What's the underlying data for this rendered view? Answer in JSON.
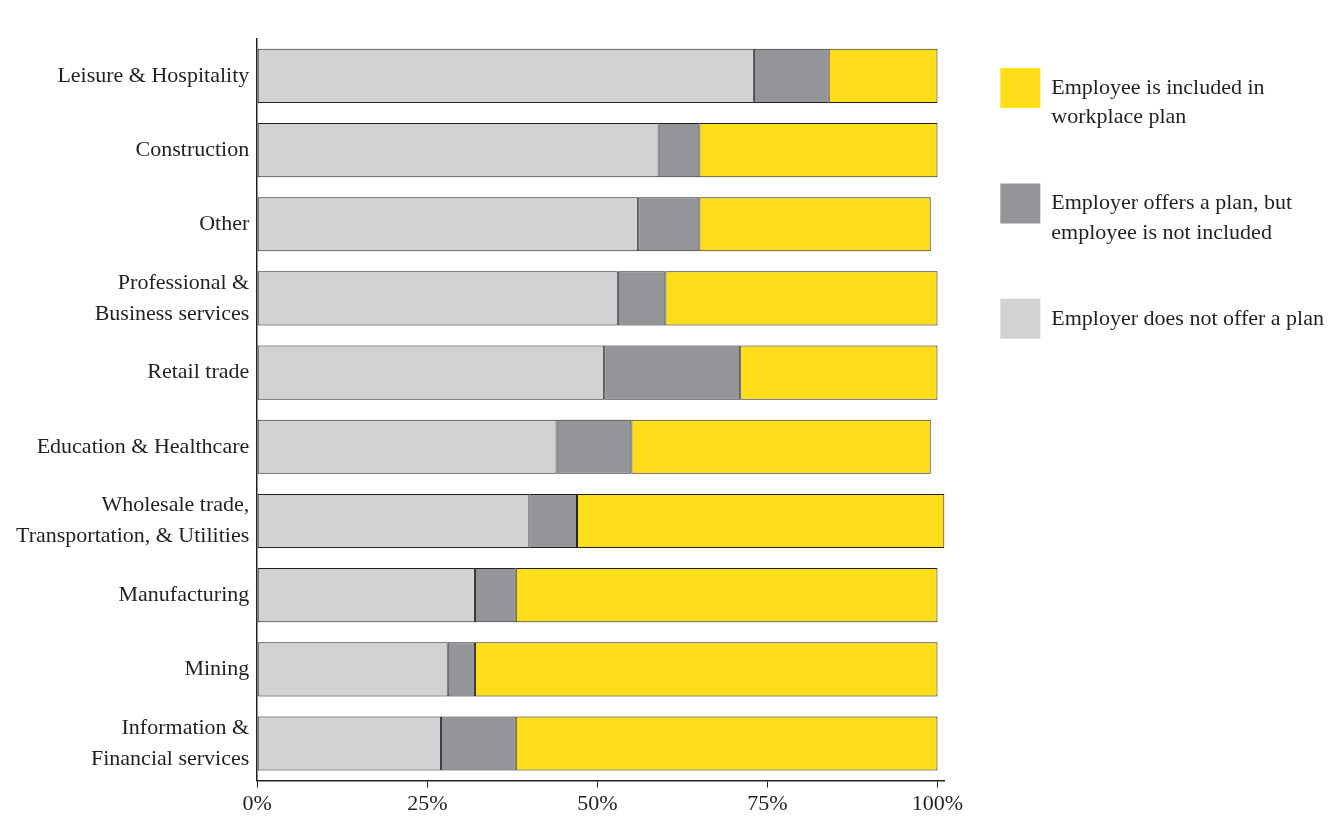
{
  "chart_data": {
    "type": "bar",
    "orientation": "horizontal",
    "stacked": true,
    "categories": [
      "Leisure & Hospitality",
      "Construction",
      "Other",
      "Professional &\nBusiness services",
      "Retail trade",
      "Education & Healthcare",
      "Wholesale trade,\nTransportation, & Utilities",
      "Manufacturing",
      "Mining",
      "Information &\nFinancial services"
    ],
    "series": [
      {
        "name": "Employer does not offer a plan",
        "color": "#d1d2d4",
        "values": [
          73,
          59,
          56,
          53,
          51,
          44,
          40,
          32,
          28,
          27
        ]
      },
      {
        "name": "Employer offers a plan, but employee is not included",
        "color": "#939598",
        "values": [
          11,
          6,
          9,
          7,
          20,
          11,
          7,
          6,
          4,
          11
        ]
      },
      {
        "name": "Employee is included in workplace plan",
        "color": "#fedd1a",
        "values": [
          16,
          35,
          34,
          40,
          29,
          44,
          54,
          62,
          68,
          62
        ]
      }
    ],
    "xlim": [
      0,
      101
    ],
    "xticks": [
      {
        "value": 0,
        "label": "0%"
      },
      {
        "value": 25,
        "label": "25%"
      },
      {
        "value": 50,
        "label": "50%"
      },
      {
        "value": 75,
        "label": "75%"
      },
      {
        "value": 100,
        "label": "100%"
      }
    ],
    "grid": false,
    "legend": "top right"
  }
}
